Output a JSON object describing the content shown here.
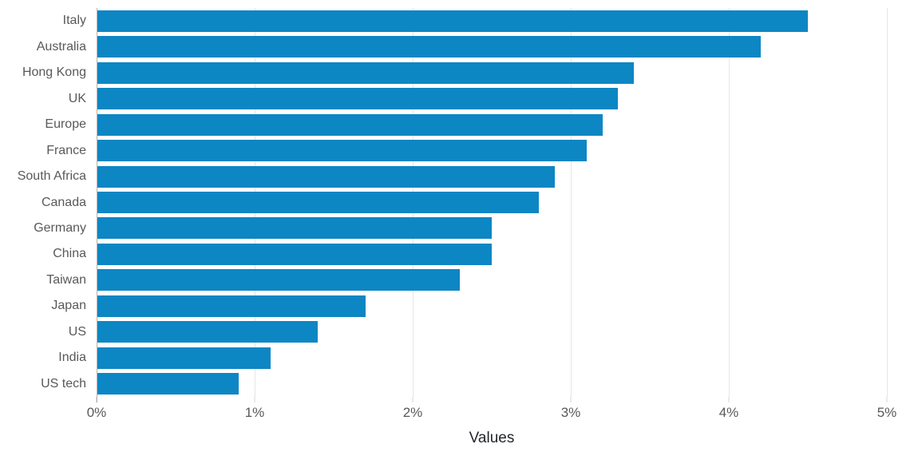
{
  "chart_data": {
    "type": "bar",
    "orientation": "horizontal",
    "title": "",
    "xlabel": "Values",
    "ylabel": "",
    "categories": [
      "Italy",
      "Australia",
      "Hong Kong",
      "UK",
      "Europe",
      "France",
      "South Africa",
      "Canada",
      "Germany",
      "China",
      "Taiwan",
      "Japan",
      "US",
      "India",
      "US tech"
    ],
    "values": [
      4.5,
      4.2,
      3.4,
      3.3,
      3.2,
      3.1,
      2.9,
      2.8,
      2.5,
      2.5,
      2.3,
      1.7,
      1.4,
      1.1,
      0.9
    ],
    "value_unit": "%",
    "xlim": [
      0,
      5
    ],
    "xticks": [
      "0%",
      "1%",
      "2%",
      "3%",
      "4%",
      "5%"
    ],
    "grid": true,
    "legend": false,
    "colors": {
      "bar": "#0d86c4",
      "category_label": "#595959",
      "tick_label": "#595959",
      "x_title": "#24272c",
      "gridline": "#e6e6e6",
      "axis_line": "#b3b3b3",
      "tick_mark": "#d6d6d6",
      "background": "#ffffff"
    }
  }
}
